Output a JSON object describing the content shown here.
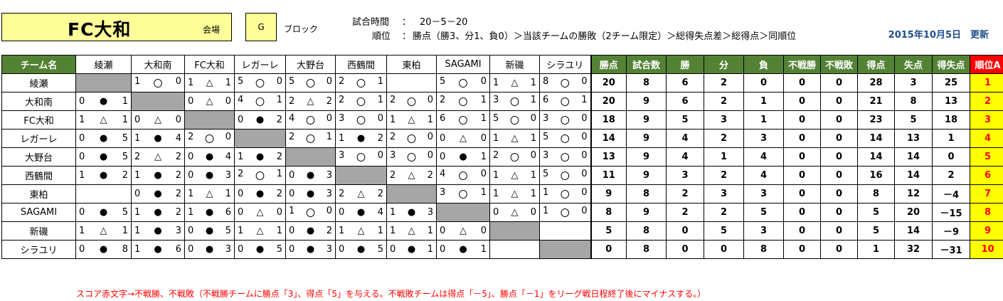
{
  "title": "FC大和",
  "venue_label": "会場",
  "block": "G",
  "block_label": "ブロック",
  "match_time_label": "試合時間",
  "match_time_sep": "：",
  "match_time": "20－5－20",
  "ranking_label": "順位",
  "ranking_sep": "：",
  "ranking_rule": "勝点（勝3、分1、負0）＞当該チームの勝敗（2チーム限定）＞総得失点差＞総得点＞同順位",
  "updated": "2015年10月5日　更新",
  "headers": {
    "team": "チーム名",
    "opponents": [
      "綾瀬",
      "大和南",
      "FC大和",
      "レガーレ",
      "大野台",
      "西鶴間",
      "東柏",
      "SAGAMI",
      "新磯",
      "シラユリ"
    ],
    "stats": [
      "勝点",
      "試合数",
      "勝",
      "分",
      "負",
      "不戦勝",
      "不戦敗",
      "得点",
      "失点",
      "得失点"
    ],
    "rank": "順位A"
  },
  "rows": [
    {
      "team": "綾瀬",
      "results": [
        null,
        [
          "1",
          "〇",
          "0"
        ],
        [
          "1",
          "△",
          "1"
        ],
        [
          "5",
          "〇",
          "0"
        ],
        [
          "5",
          "〇",
          "0"
        ],
        [
          "2",
          "〇",
          "1"
        ],
        [
          "",
          "",
          ""
        ],
        [
          "5",
          "〇",
          "0"
        ],
        [
          "1",
          "△",
          "1"
        ],
        [
          "8",
          "〇",
          "0"
        ]
      ],
      "stats": [
        "20",
        "8",
        "6",
        "2",
        "0",
        "0",
        "0",
        "28",
        "3",
        "25"
      ],
      "rank": "1"
    },
    {
      "team": "大和南",
      "results": [
        [
          "0",
          "●",
          "1"
        ],
        null,
        [
          "0",
          "△",
          "0"
        ],
        [
          "4",
          "〇",
          "1"
        ],
        [
          "2",
          "△",
          "2"
        ],
        [
          "2",
          "〇",
          "1"
        ],
        [
          "2",
          "〇",
          "0"
        ],
        [
          "2",
          "〇",
          "1"
        ],
        [
          "3",
          "〇",
          "1"
        ],
        [
          "6",
          "〇",
          "1"
        ]
      ],
      "stats": [
        "20",
        "9",
        "6",
        "2",
        "1",
        "0",
        "0",
        "21",
        "8",
        "13"
      ],
      "rank": "2"
    },
    {
      "team": "FC大和",
      "results": [
        [
          "1",
          "△",
          "1"
        ],
        [
          "0",
          "△",
          "0"
        ],
        null,
        [
          "0",
          "●",
          "2"
        ],
        [
          "4",
          "〇",
          "0"
        ],
        [
          "3",
          "〇",
          "0"
        ],
        [
          "1",
          "△",
          "1"
        ],
        [
          "6",
          "〇",
          "1"
        ],
        [
          "5",
          "〇",
          "0"
        ],
        [
          "3",
          "〇",
          "0"
        ]
      ],
      "stats": [
        "18",
        "9",
        "5",
        "3",
        "1",
        "0",
        "0",
        "23",
        "5",
        "18"
      ],
      "rank": "3"
    },
    {
      "team": "レガーレ",
      "results": [
        [
          "0",
          "●",
          "5"
        ],
        [
          "1",
          "●",
          "4"
        ],
        [
          "2",
          "〇",
          "0"
        ],
        null,
        [
          "2",
          "〇",
          "1"
        ],
        [
          "1",
          "●",
          "2"
        ],
        [
          "2",
          "〇",
          "0"
        ],
        [
          "0",
          "△",
          "0"
        ],
        [
          "1",
          "△",
          "1"
        ],
        [
          "5",
          "〇",
          "0"
        ]
      ],
      "stats": [
        "14",
        "9",
        "4",
        "2",
        "3",
        "0",
        "0",
        "14",
        "13",
        "1"
      ],
      "rank": "4"
    },
    {
      "team": "大野台",
      "results": [
        [
          "0",
          "●",
          "5"
        ],
        [
          "2",
          "△",
          "2"
        ],
        [
          "0",
          "●",
          "4"
        ],
        [
          "1",
          "●",
          "2"
        ],
        null,
        [
          "3",
          "〇",
          "0"
        ],
        [
          "3",
          "〇",
          "0"
        ],
        [
          "0",
          "●",
          "1"
        ],
        [
          "2",
          "〇",
          "0"
        ],
        [
          "3",
          "〇",
          "0"
        ]
      ],
      "stats": [
        "13",
        "9",
        "4",
        "1",
        "4",
        "0",
        "0",
        "14",
        "14",
        "0"
      ],
      "rank": "5"
    },
    {
      "team": "西鶴間",
      "results": [
        [
          "1",
          "●",
          "2"
        ],
        [
          "1",
          "●",
          "2"
        ],
        [
          "0",
          "●",
          "3"
        ],
        [
          "2",
          "〇",
          "1"
        ],
        [
          "0",
          "●",
          "3"
        ],
        null,
        [
          "2",
          "△",
          "2"
        ],
        [
          "4",
          "〇",
          "0"
        ],
        [
          "1",
          "△",
          "1"
        ],
        [
          "5",
          "〇",
          "0"
        ]
      ],
      "stats": [
        "11",
        "9",
        "3",
        "2",
        "4",
        "0",
        "0",
        "16",
        "14",
        "2"
      ],
      "rank": "6"
    },
    {
      "team": "東柏",
      "results": [
        [
          "",
          "",
          ""
        ],
        [
          "0",
          "●",
          "2"
        ],
        [
          "1",
          "△",
          "1"
        ],
        [
          "0",
          "●",
          "2"
        ],
        [
          "0",
          "●",
          "3"
        ],
        [
          "2",
          "△",
          "2"
        ],
        null,
        [
          "3",
          "〇",
          "1"
        ],
        [
          "1",
          "△",
          "1"
        ],
        [
          "1",
          "〇",
          "0"
        ]
      ],
      "stats": [
        "9",
        "8",
        "2",
        "3",
        "3",
        "0",
        "0",
        "8",
        "12",
        "－4"
      ],
      "rank": "7"
    },
    {
      "team": "SAGAMI",
      "results": [
        [
          "0",
          "●",
          "5"
        ],
        [
          "1",
          "●",
          "2"
        ],
        [
          "1",
          "●",
          "6"
        ],
        [
          "0",
          "△",
          "0"
        ],
        [
          "1",
          "〇",
          "0"
        ],
        [
          "0",
          "●",
          "4"
        ],
        [
          "1",
          "●",
          "3"
        ],
        null,
        [
          "0",
          "△",
          "0"
        ],
        [
          "1",
          "〇",
          "0"
        ]
      ],
      "stats": [
        "8",
        "9",
        "2",
        "2",
        "5",
        "0",
        "0",
        "5",
        "20",
        "－15"
      ],
      "rank": "8"
    },
    {
      "team": "新磯",
      "results": [
        [
          "1",
          "△",
          "1"
        ],
        [
          "1",
          "●",
          "3"
        ],
        [
          "0",
          "●",
          "5"
        ],
        [
          "1",
          "△",
          "1"
        ],
        [
          "0",
          "●",
          "2"
        ],
        [
          "1",
          "△",
          "1"
        ],
        [
          "1",
          "△",
          "1"
        ],
        [
          "0",
          "△",
          "0"
        ],
        null,
        [
          "",
          "",
          ""
        ]
      ],
      "stats": [
        "5",
        "8",
        "0",
        "5",
        "3",
        "0",
        "0",
        "5",
        "14",
        "－9"
      ],
      "rank": "9"
    },
    {
      "team": "シラユリ",
      "results": [
        [
          "0",
          "●",
          "8"
        ],
        [
          "1",
          "●",
          "6"
        ],
        [
          "0",
          "●",
          "3"
        ],
        [
          "0",
          "●",
          "5"
        ],
        [
          "0",
          "●",
          "3"
        ],
        [
          "0",
          "●",
          "5"
        ],
        [
          "0",
          "●",
          "1"
        ],
        [
          "0",
          "●",
          "1"
        ],
        [
          "",
          "",
          ""
        ],
        null
      ],
      "stats": [
        "0",
        "8",
        "0",
        "0",
        "8",
        "0",
        "0",
        "1",
        "32",
        "－31"
      ],
      "rank": "10"
    }
  ],
  "note": "スコア赤文字→不戦勝、不戦敗（不戦勝チームに勝点「3」、得点「5」を与える。不戦敗チームは得点「－5」、勝点「－1」をリーグ戦日程終了後にマイナスする。）",
  "colors": {
    "header_green": "#548235",
    "rank_red": "#ff0000",
    "highlight_yellow": "#ffff00",
    "title_yellow": "#ffff99",
    "self_gray": "#a6a6a6",
    "updated_blue": "#1f4e8c"
  }
}
